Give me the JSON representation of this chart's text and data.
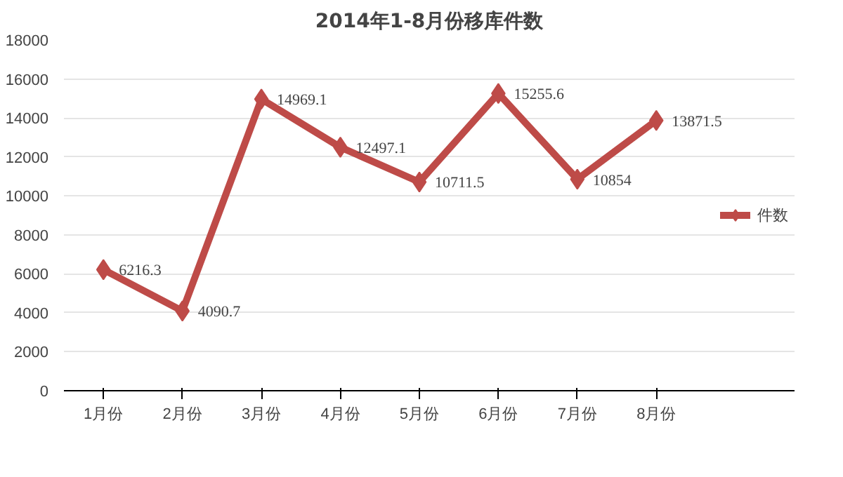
{
  "chart_data": {
    "type": "line",
    "title": "2014年1-8月份移库件数",
    "categories": [
      "1月份",
      "2月份",
      "3月份",
      "4月份",
      "5月份",
      "6月份",
      "7月份",
      "8月份"
    ],
    "series": [
      {
        "name": "件数",
        "color": "#be4b48",
        "values": [
          6216.3,
          4090.7,
          14969.1,
          12497.1,
          10711.5,
          15255.6,
          10854,
          13871.5
        ]
      }
    ],
    "ylim": [
      0,
      18000
    ],
    "yticks": [
      0,
      2000,
      4000,
      6000,
      8000,
      10000,
      12000,
      14000,
      16000,
      18000
    ],
    "grid": "y",
    "legend": "right",
    "marker": "diamond",
    "line_style": "solid",
    "data_labels": true
  }
}
